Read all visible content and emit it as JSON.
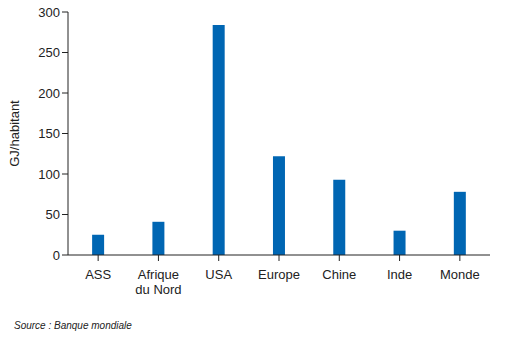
{
  "chart_data": {
    "type": "bar",
    "y_label": "GJ/habitant",
    "source": "Source : Banque mondiale",
    "categories": [
      "ASS",
      "Afrique du Nord",
      "USA",
      "Europe",
      "Chine",
      "Inde",
      "Monde"
    ],
    "values": [
      25,
      41,
      284,
      122,
      93,
      30,
      78
    ],
    "color": "#0066b3",
    "ylim": [
      0,
      300
    ],
    "yticks": [
      0,
      50,
      100,
      150,
      200,
      250,
      300
    ],
    "grid": false
  }
}
